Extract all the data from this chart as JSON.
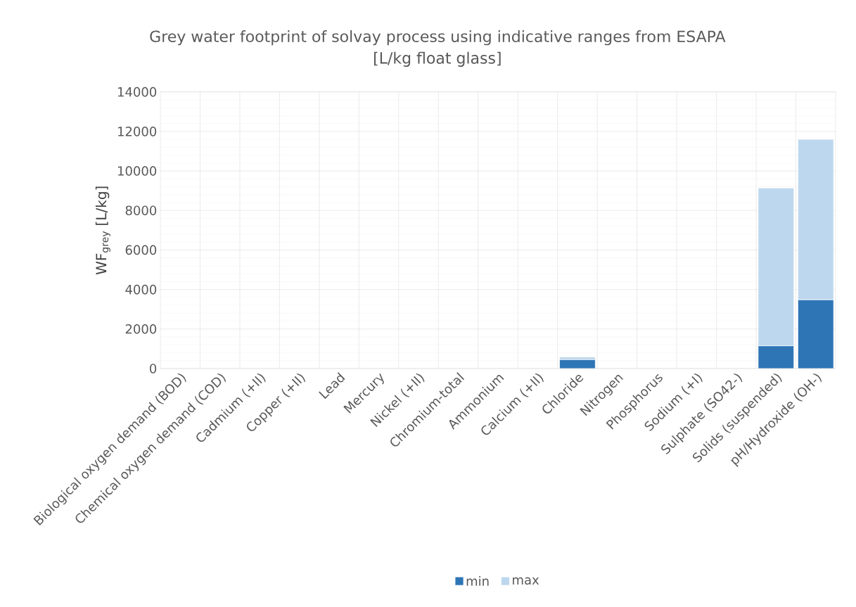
{
  "chart_data": {
    "type": "bar",
    "stacked": true,
    "title": "Grey water footprint of solvay process using indicative ranges from ESAPA",
    "subtitle": "[L/kg float glass]",
    "ylabel": "WF$_{grey}$ [L/kg]",
    "categories": [
      "Biological oxygen demand (BOD)",
      "Chemical oxygen demand (COD)",
      "Cadmium (+II)",
      "Copper (+II)",
      "Lead",
      "Mercury",
      "Nickel (+II)",
      "Chromium-total",
      "Ammonium",
      "Calcium (+II)",
      "Chloride",
      "Nitrogen",
      "Phosphorus",
      "Sodium (+I)",
      "Sulphate (SO42-)",
      "Solids (suspended)",
      "pH/Hydroxide (OH-)"
    ],
    "series": [
      {
        "name": "min",
        "color": "#2e75b6",
        "values": [
          0,
          0,
          0,
          0,
          0,
          0,
          0,
          0,
          0,
          0,
          450,
          0,
          0,
          0,
          0,
          1150,
          3480
        ]
      },
      {
        "name": "max",
        "color": "#bdd7ee",
        "values": [
          0,
          0,
          0,
          0,
          0,
          0,
          0,
          0,
          0,
          0,
          140,
          0,
          0,
          0,
          0,
          7990,
          8120
        ]
      }
    ],
    "ylim": [
      0,
      14000
    ],
    "yticks": [
      0,
      2000,
      4000,
      6000,
      8000,
      10000,
      12000,
      14000
    ],
    "grid": true,
    "legend": "bottom"
  }
}
